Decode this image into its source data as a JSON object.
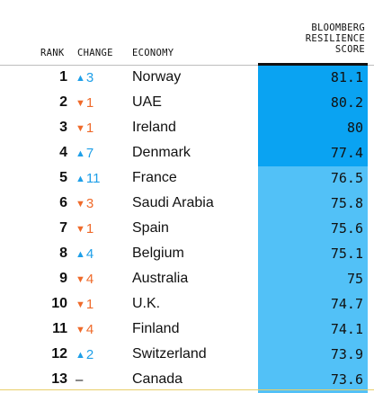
{
  "headers": {
    "rank": "RANK",
    "change": "CHANGE",
    "economy": "ECONOMY",
    "score_line1": "BLOOMBERG",
    "score_line2": "RESILIENCE",
    "score_line3": "SCORE"
  },
  "colors": {
    "up": "#1e9fe8",
    "down": "#ef6a2a",
    "score_top_tier": "#0aa3f2",
    "score_other": "#52c1f7"
  },
  "chart_data": {
    "type": "table",
    "columns": [
      "RANK",
      "CHANGE",
      "ECONOMY",
      "BLOOMBERG RESILIENCE SCORE"
    ],
    "rows": [
      {
        "rank": "1",
        "direction": "up",
        "change": "3",
        "economy": "Norway",
        "score": "81.1"
      },
      {
        "rank": "2",
        "direction": "down",
        "change": "1",
        "economy": "UAE",
        "score": "80.2"
      },
      {
        "rank": "3",
        "direction": "down",
        "change": "1",
        "economy": "Ireland",
        "score": "80"
      },
      {
        "rank": "4",
        "direction": "up",
        "change": "7",
        "economy": "Denmark",
        "score": "77.4"
      },
      {
        "rank": "5",
        "direction": "up",
        "change": "11",
        "economy": "France",
        "score": "76.5"
      },
      {
        "rank": "6",
        "direction": "down",
        "change": "3",
        "economy": "Saudi Arabia",
        "score": "75.8"
      },
      {
        "rank": "7",
        "direction": "down",
        "change": "1",
        "economy": "Spain",
        "score": "75.6"
      },
      {
        "rank": "8",
        "direction": "up",
        "change": "4",
        "economy": "Belgium",
        "score": "75.1"
      },
      {
        "rank": "9",
        "direction": "down",
        "change": "4",
        "economy": "Australia",
        "score": "75"
      },
      {
        "rank": "10",
        "direction": "down",
        "change": "1",
        "economy": "U.K.",
        "score": "74.7"
      },
      {
        "rank": "11",
        "direction": "down",
        "change": "4",
        "economy": "Finland",
        "score": "74.1"
      },
      {
        "rank": "12",
        "direction": "up",
        "change": "2",
        "economy": "Switzerland",
        "score": "73.9"
      },
      {
        "rank": "13",
        "direction": "none",
        "change": "–",
        "economy": "Canada",
        "score": "73.6"
      }
    ],
    "highlighted_top_count": 4
  }
}
